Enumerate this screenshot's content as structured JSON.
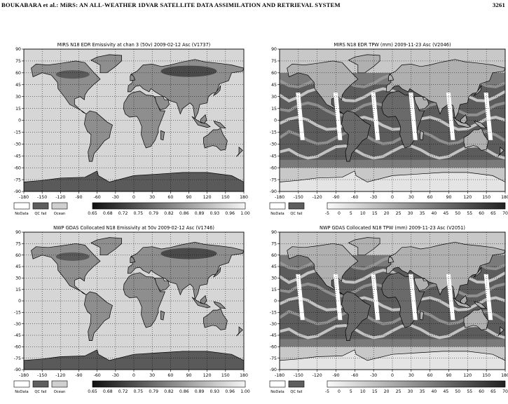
{
  "header": {
    "left": "BOUKABARA et al.: MiRS: AN ALL-WEATHER 1DVAR SATELLITE DATA ASSIMILATION AND RETRIEVAL SYSTEM",
    "page_number": "3261"
  },
  "chart_data": [
    {
      "type": "heatmap",
      "title": "MIRS N18 EDR Emissivity at chan 3 (50v) 2009-02-12 Asc (V1737)",
      "x_ticks": [
        "-180",
        "-150",
        "-120",
        "-90",
        "-60",
        "-30",
        "0",
        "30",
        "60",
        "90",
        "120",
        "150",
        "180"
      ],
      "y_ticks": [
        "90",
        "75",
        "60",
        "45",
        "30",
        "15",
        "0",
        "-15",
        "-30",
        "-45",
        "-60",
        "-75",
        "-90"
      ],
      "legend": [
        "NoData",
        "QC fail",
        "Ocean"
      ],
      "colorbar": [
        "0.65",
        "0.68",
        "0.72",
        "0.75",
        "0.79",
        "0.82",
        "0.86",
        "0.89",
        "0.93",
        "0.96",
        "1.00"
      ]
    },
    {
      "type": "heatmap",
      "title": "MIRS N18 EDR TPW (mm) 2009-11-23 Asc (V2046)",
      "x_ticks": [
        "-180",
        "-150",
        "-120",
        "-90",
        "-60",
        "-30",
        "0",
        "30",
        "60",
        "90",
        "120",
        "150",
        "180"
      ],
      "y_ticks": [
        "90",
        "75",
        "60",
        "45",
        "30",
        "15",
        "0",
        "-15",
        "-30",
        "-45",
        "-60",
        "-75",
        "-90"
      ],
      "legend": [
        "NoData",
        "QC fail"
      ],
      "colorbar": [
        "-5",
        "0",
        "5",
        "10",
        "15",
        "20",
        "25",
        "30",
        "35",
        "40",
        "45",
        "50",
        "55",
        "60",
        "65",
        "70"
      ]
    },
    {
      "type": "heatmap",
      "title": "NWP GDAS Collocated N18 Emissivity at 50v 2009-02-12 Asc (V1746)",
      "x_ticks": [
        "-180",
        "-150",
        "-120",
        "-90",
        "-60",
        "-30",
        "0",
        "30",
        "60",
        "90",
        "120",
        "150",
        "180"
      ],
      "y_ticks": [
        "90",
        "75",
        "60",
        "45",
        "30",
        "15",
        "0",
        "-15",
        "-30",
        "-45",
        "-60",
        "-75",
        "-90"
      ],
      "legend": [
        "NoData",
        "QC fail",
        "Ocean"
      ],
      "colorbar": [
        "0.65",
        "0.68",
        "0.72",
        "0.75",
        "0.79",
        "0.82",
        "0.86",
        "0.89",
        "0.93",
        "0.96",
        "1.00"
      ]
    },
    {
      "type": "heatmap",
      "title": "NWP GDAS Collocated N18 TPW (mm) 2009-11-23 Asc (V2051)",
      "x_ticks": [
        "-180",
        "-150",
        "-120",
        "-90",
        "-60",
        "-30",
        "0",
        "30",
        "60",
        "90",
        "120",
        "150",
        "180"
      ],
      "y_ticks": [
        "90",
        "75",
        "60",
        "45",
        "30",
        "15",
        "0",
        "-15",
        "-30",
        "-45",
        "-60",
        "-75",
        "-90"
      ],
      "legend": [
        "NoData",
        "QC fail"
      ],
      "colorbar": [
        "-5",
        "0",
        "5",
        "10",
        "15",
        "20",
        "25",
        "30",
        "35",
        "40",
        "45",
        "50",
        "55",
        "60",
        "65",
        "70"
      ]
    }
  ]
}
